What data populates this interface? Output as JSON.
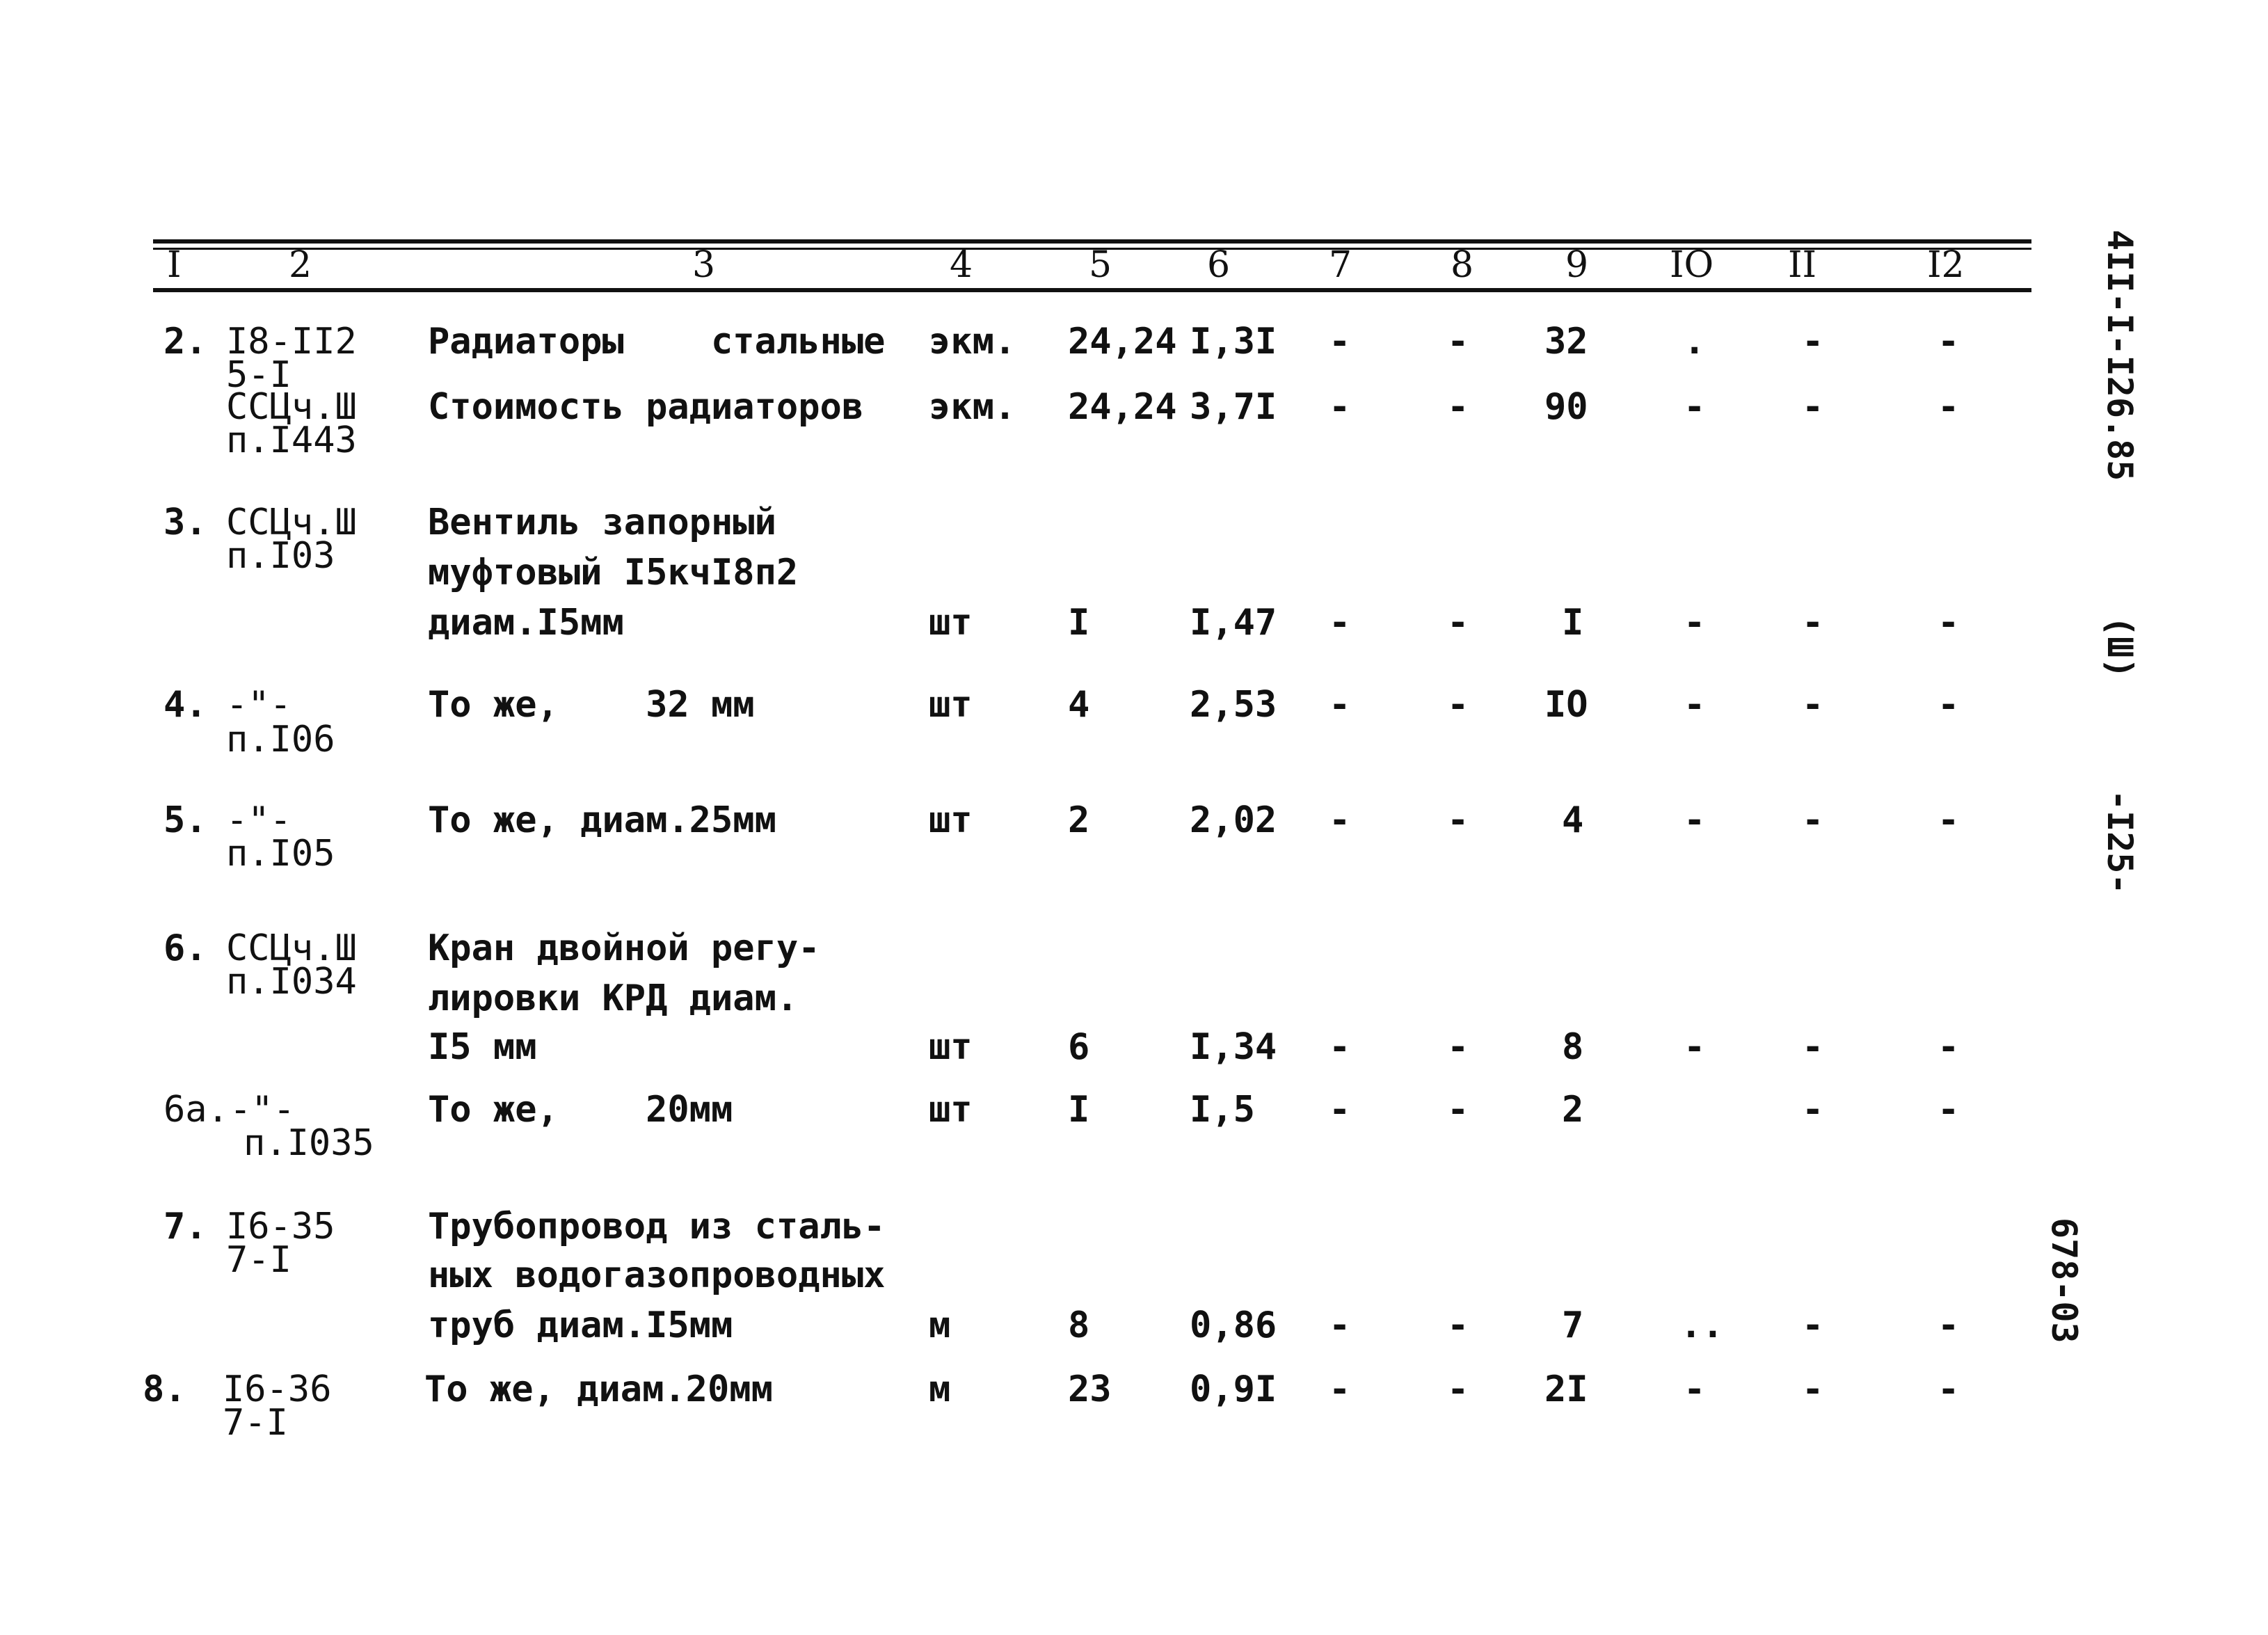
{
  "columns": [
    "I",
    "2",
    "3",
    "4",
    "5",
    "6",
    "7",
    "8",
    "9",
    "IO",
    "II",
    "I2"
  ],
  "rows": [
    {
      "no": "2.",
      "ref": [
        "I8-II2",
        "5-I"
      ],
      "desc": [
        "Радиаторы    стальные"
      ],
      "unit": "экм.",
      "c5": "24,24",
      "c6": "I,3I",
      "c7": "-",
      "c8": "-",
      "c9": "32",
      "c10": ".",
      "c11": "-",
      "c12": "-"
    },
    {
      "no": "",
      "ref": [
        "ССЦч.Ш",
        "п.I443"
      ],
      "desc": [
        "Стоимость радиаторов"
      ],
      "unit": "экм.",
      "c5": "24,24",
      "c6": "3,7I",
      "c7": "-",
      "c8": "-",
      "c9": "90",
      "c10": "-",
      "c11": "-",
      "c12": "-"
    },
    {
      "no": "3.",
      "ref": [
        "ССЦч.Ш",
        "п.I03"
      ],
      "desc": [
        "Вентиль запорный",
        "муфтовый I5кчI8п2",
        "диам.I5мм"
      ],
      "unit": "шт",
      "c5": "I",
      "c6": "I,47",
      "c7": "-",
      "c8": "-",
      "c9": "I",
      "c10": "-",
      "c11": "-",
      "c12": "-"
    },
    {
      "no": "4.",
      "ref": [
        "-\"-",
        "п.I06"
      ],
      "desc": [
        "То же,    32 мм"
      ],
      "unit": "шт",
      "c5": "4",
      "c6": "2,53",
      "c7": "-",
      "c8": "-",
      "c9": "IO",
      "c10": "-",
      "c11": "-",
      "c12": "-"
    },
    {
      "no": "5.",
      "ref": [
        "-\"-",
        "п.I05"
      ],
      "desc": [
        "То же, диам.25мм"
      ],
      "unit": "шт",
      "c5": "2",
      "c6": "2,02",
      "c7": "-",
      "c8": "-",
      "c9": "4",
      "c10": "-",
      "c11": "-",
      "c12": "-"
    },
    {
      "no": "6.",
      "ref": [
        "ССЦч.Ш",
        "п.I034"
      ],
      "desc": [
        "Кран двойной регу-",
        "лировки КРД диам.",
        "I5 мм"
      ],
      "unit": "шт",
      "c5": "6",
      "c6": "I,34",
      "c7": "-",
      "c8": "-",
      "c9": "8",
      "c10": "-",
      "c11": "-",
      "c12": "-"
    },
    {
      "no": "6а.",
      "ref": [
        "-\"-",
        "п.I035"
      ],
      "desc": [
        "То же,    20мм"
      ],
      "unit": "шт",
      "c5": "I",
      "c6": "I,5",
      "c7": "-",
      "c8": "-",
      "c9": "2",
      "c10": "",
      "c11": "-",
      "c12": "-"
    },
    {
      "no": "7.",
      "ref": [
        "I6-35",
        "7-I"
      ],
      "desc": [
        "Трубопровод из сталь-",
        "ных водогазопроводных",
        "труб диам.I5мм"
      ],
      "unit": "м",
      "c5": "8",
      "c6": "0,86",
      "c7": "-",
      "c8": "-",
      "c9": "7",
      "c10": "..",
      "c11": "-",
      "c12": "-"
    },
    {
      "no": "8.",
      "ref": [
        "I6-36",
        "7-I"
      ],
      "desc": [
        "То же, диам.20мм"
      ],
      "unit": "м",
      "c5": "23",
      "c6": "0,9I",
      "c7": "-",
      "c8": "-",
      "c9": "2I",
      "c10": "-",
      "c11": "-",
      "c12": "-"
    }
  ],
  "side": {
    "doc_code": "4II-I-I26.85",
    "album": "(Ш)",
    "page": "-I25-",
    "stamp": "678-03"
  }
}
